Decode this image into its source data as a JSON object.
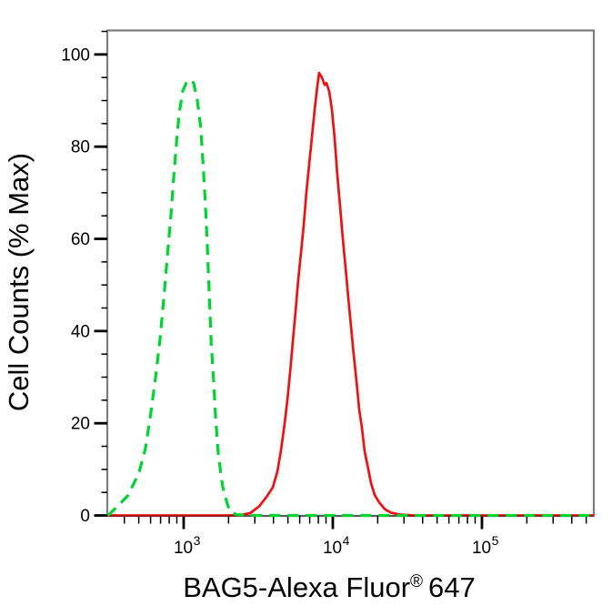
{
  "figure": {
    "background": "#ffffff",
    "frame_color": "#7d7d7d",
    "tick_color": "#000000",
    "text_color": "#000000"
  },
  "chart_data": {
    "type": "line",
    "subtype": "flow-cytometry-overlay-histogram",
    "title": "",
    "ylabel": "Cell Counts (% Max)",
    "xlabel": "BAG5-Alexa Fluor® 647",
    "xlabel_parts": {
      "main": "BAG5-Alexa Fluor",
      "sup": "®",
      "tail": "647"
    },
    "x_scale": "log",
    "x_range_log10": [
      2.488,
      5.75
    ],
    "ylim": [
      0,
      105.2
    ],
    "grid": false,
    "legend": "none",
    "y_axis": {
      "major_ticks": [
        0,
        20,
        40,
        60,
        80,
        100
      ],
      "tick_labels": [
        "0",
        "20",
        "40",
        "60",
        "80",
        "100"
      ],
      "minor_step": 5
    },
    "x_axis": {
      "major_ticks": [
        1000,
        10000,
        100000
      ],
      "tick_labels": [
        "10^3",
        "10^4",
        "10^5"
      ],
      "tick_label_base": "10",
      "tick_label_exponents": [
        3,
        4,
        5
      ]
    },
    "series": [
      {
        "id": "curve-red",
        "name": "red-solid",
        "style": "solid",
        "color": "#ee1111",
        "points": [
          [
            310,
            0
          ],
          [
            2000,
            0
          ],
          [
            2500,
            0.2
          ],
          [
            2790,
            0.5
          ],
          [
            3210,
            2
          ],
          [
            3590,
            4
          ],
          [
            3960,
            6.1
          ],
          [
            4250,
            9.5
          ],
          [
            4490,
            14
          ],
          [
            4750,
            20
          ],
          [
            4960,
            25
          ],
          [
            5170,
            31
          ],
          [
            5400,
            38
          ],
          [
            5620,
            44
          ],
          [
            5860,
            51
          ],
          [
            6120,
            57
          ],
          [
            6380,
            63
          ],
          [
            6650,
            70
          ],
          [
            6930,
            76
          ],
          [
            7240,
            82
          ],
          [
            7550,
            88
          ],
          [
            7870,
            93
          ],
          [
            8090,
            96
          ],
          [
            8450,
            95
          ],
          [
            8810,
            93.4
          ],
          [
            9060,
            93.8
          ],
          [
            9460,
            92
          ],
          [
            9860,
            88
          ],
          [
            10280,
            82
          ],
          [
            10720,
            74
          ],
          [
            11190,
            67
          ],
          [
            11670,
            60
          ],
          [
            12160,
            54
          ],
          [
            12710,
            47
          ],
          [
            13240,
            41
          ],
          [
            13800,
            35
          ],
          [
            14420,
            29
          ],
          [
            15030,
            23
          ],
          [
            15670,
            19
          ],
          [
            16330,
            14
          ],
          [
            17060,
            11
          ],
          [
            18030,
            7
          ],
          [
            19060,
            4.5
          ],
          [
            20460,
            2.8
          ],
          [
            22280,
            1.4
          ],
          [
            24550,
            0.6
          ],
          [
            28250,
            0.2
          ],
          [
            35000,
            0
          ],
          [
            560000,
            0
          ]
        ]
      },
      {
        "id": "curve-green",
        "name": "green-dashed",
        "style": "dashed",
        "color": "#00d42e",
        "points": [
          [
            310,
            0
          ],
          [
            335,
            1
          ],
          [
            420,
            4.2
          ],
          [
            500,
            9.1
          ],
          [
            555,
            14.6
          ],
          [
            600,
            21.9
          ],
          [
            647,
            29.8
          ],
          [
            694,
            38.3
          ],
          [
            734,
            46.6
          ],
          [
            776,
            55.9
          ],
          [
            821,
            65
          ],
          [
            857,
            73.3
          ],
          [
            894,
            80.6
          ],
          [
            932,
            87.2
          ],
          [
            986,
            92.1
          ],
          [
            1040,
            93.8
          ],
          [
            1120,
            94.5
          ],
          [
            1165,
            93.8
          ],
          [
            1230,
            90.5
          ],
          [
            1300,
            84.2
          ],
          [
            1350,
            76.3
          ],
          [
            1410,
            65.4
          ],
          [
            1450,
            56.5
          ],
          [
            1490,
            46.6
          ],
          [
            1530,
            37.2
          ],
          [
            1590,
            28.9
          ],
          [
            1640,
            20.9
          ],
          [
            1710,
            13
          ],
          [
            1830,
            6.1
          ],
          [
            1960,
            2.6
          ],
          [
            2040,
            0.8
          ],
          [
            2260,
            0.2
          ],
          [
            3000,
            0
          ],
          [
            560000,
            0
          ]
        ]
      }
    ]
  }
}
